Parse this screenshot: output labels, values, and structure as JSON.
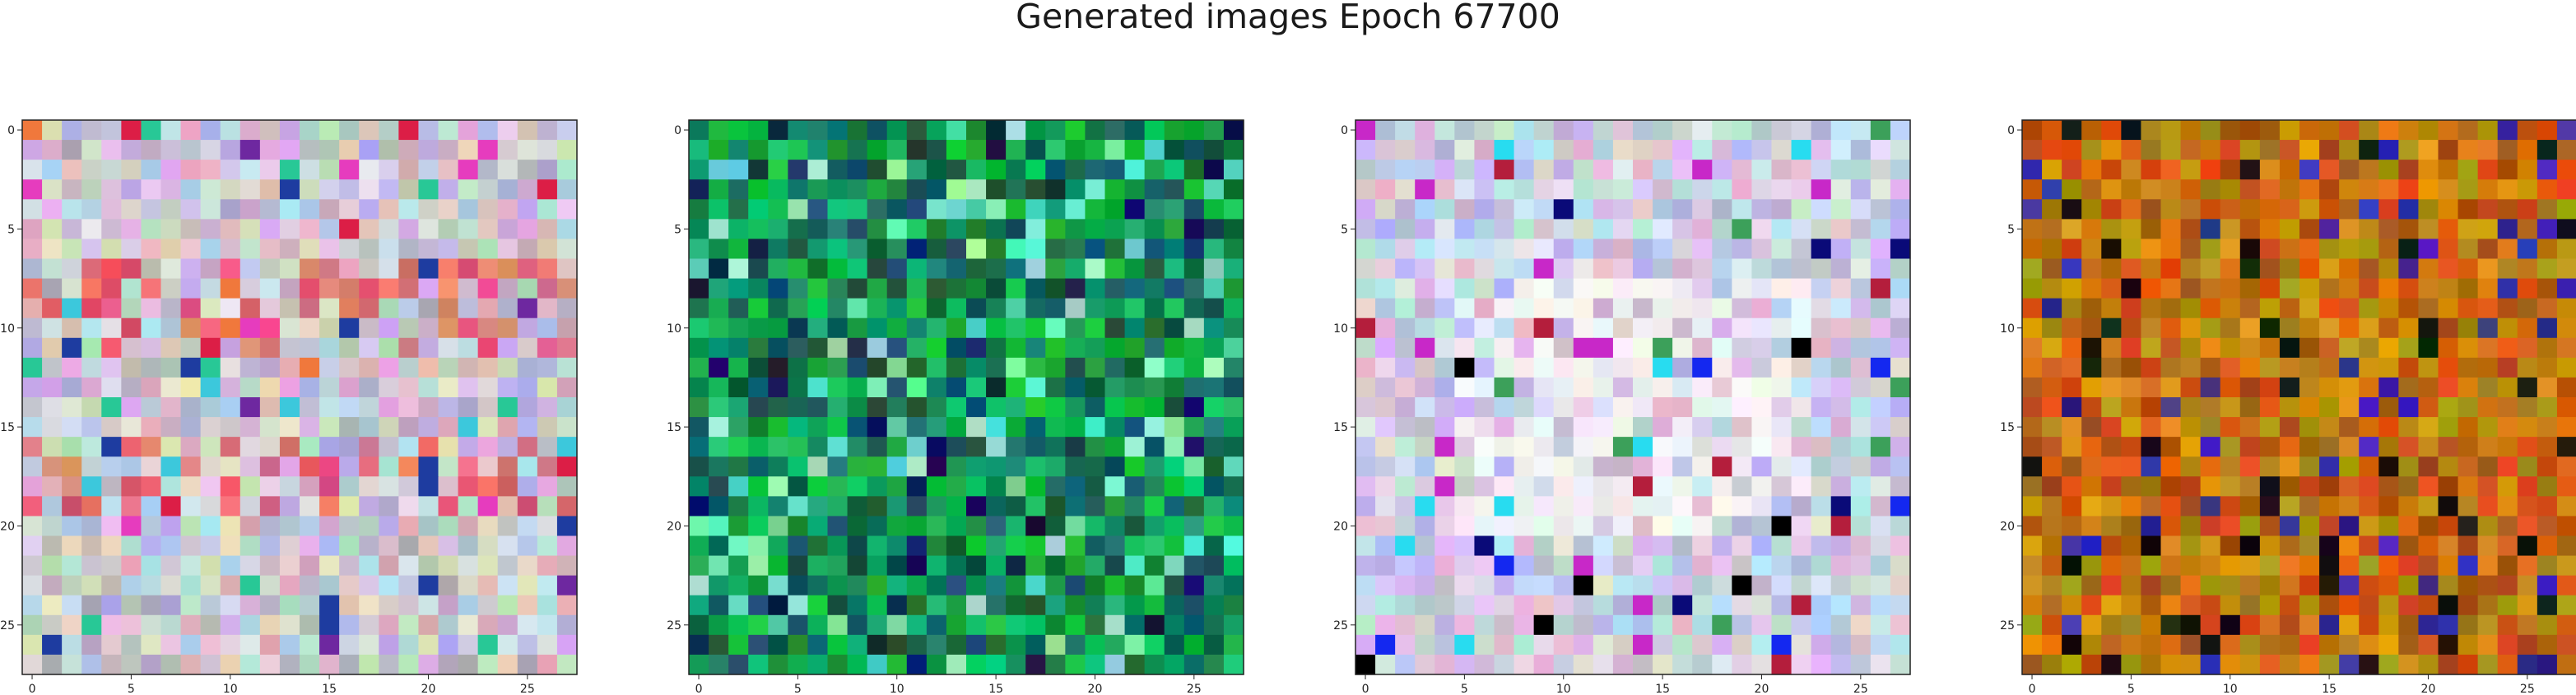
{
  "figure": {
    "title": "Generated images Epoch 67700"
  },
  "chart_data": [
    {
      "type": "heatmap",
      "palette": "pastel",
      "grid_size": 28,
      "seed": 11,
      "xlim": [
        0,
        27
      ],
      "ylim": [
        27,
        0
      ],
      "xticks": [
        0,
        5,
        10,
        15,
        20,
        25
      ],
      "yticks": [
        0,
        5,
        10,
        15,
        20,
        25
      ],
      "grid": false
    },
    {
      "type": "heatmap",
      "palette": "green",
      "grid_size": 28,
      "seed": 23,
      "xlim": [
        0,
        27
      ],
      "ylim": [
        27,
        0
      ],
      "xticks": [
        0,
        5,
        10,
        15,
        20,
        25
      ],
      "yticks": [
        0,
        5,
        10,
        15,
        20,
        25
      ],
      "grid": false
    },
    {
      "type": "heatmap",
      "palette": "light",
      "grid_size": 28,
      "seed": 37,
      "xlim": [
        0,
        27
      ],
      "ylim": [
        27,
        0
      ],
      "xticks": [
        0,
        5,
        10,
        15,
        20,
        25
      ],
      "yticks": [
        0,
        5,
        10,
        15,
        20,
        25
      ],
      "grid": false
    },
    {
      "type": "heatmap",
      "palette": "olive-orange",
      "grid_size": 28,
      "seed": 53,
      "xlim": [
        0,
        27
      ],
      "ylim": [
        27,
        0
      ],
      "xticks": [
        0,
        5,
        10,
        15,
        20,
        25
      ],
      "yticks": [
        0,
        5,
        10,
        15,
        20,
        25
      ],
      "grid": false
    }
  ]
}
